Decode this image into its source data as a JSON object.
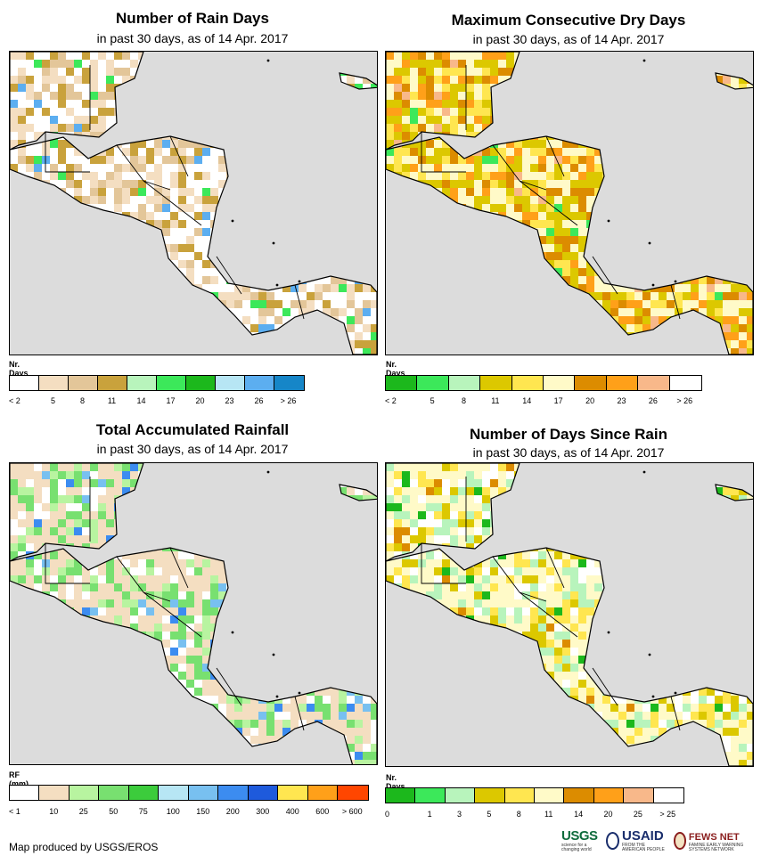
{
  "panels": [
    {
      "title": "Number of Rain Days",
      "subtitle": "in past 30 days, as of 14 Apr. 2017",
      "legend_title": "Nr. Days",
      "legend_colors": [
        "#ffffff",
        "#f4dec1",
        "#e3c699",
        "#c9a23c",
        "#b8f4bc",
        "#3ce85a",
        "#1cb81c",
        "#b7e6f4",
        "#5caef0",
        "#1686c8"
      ],
      "legend_ticks": [
        "< 2",
        "5",
        "8",
        "11",
        "14",
        "17",
        "20",
        "23",
        "26",
        "> 26"
      ],
      "map_fill": [
        "#ffffff",
        "#ffffff",
        "#ffffff",
        "#f4dec1",
        "#f4dec1",
        "#e3c699",
        "#c9a23c"
      ],
      "map_accent": [
        "#3ce85a",
        "#5caef0"
      ]
    },
    {
      "title": "Maximum Consecutive Dry Days",
      "subtitle": "in past 30 days, as of 14 Apr. 2017",
      "legend_title": "Nr. Days",
      "legend_colors": [
        "#1cb81c",
        "#3ce85a",
        "#b8f4bc",
        "#dcc800",
        "#ffe650",
        "#fffac8",
        "#dc8c00",
        "#ffa019",
        "#f8b88a",
        "#ffffff"
      ],
      "legend_ticks": [
        "< 2",
        "5",
        "8",
        "11",
        "14",
        "17",
        "20",
        "23",
        "26",
        "> 26"
      ],
      "map_fill": [
        "#dcc800",
        "#ffe650",
        "#fffac8",
        "#dc8c00",
        "#ffa019",
        "#dcc800",
        "#fffac8"
      ],
      "map_accent": [
        "#3ce85a",
        "#f8b88a"
      ]
    },
    {
      "title": "Total Accumulated Rainfall",
      "subtitle": "in past 30 days, as of 14 Apr. 2017",
      "legend_title": "RF (mm)",
      "legend_colors": [
        "#ffffff",
        "#f4dec1",
        "#b8f4a0",
        "#78e070",
        "#3ccc3c",
        "#b7e6f4",
        "#78c0f0",
        "#3c8cf0",
        "#1e5adc",
        "#ffe650",
        "#ffa019",
        "#ff4600"
      ],
      "legend_ticks": [
        "< 1",
        "10",
        "25",
        "50",
        "75",
        "100",
        "150",
        "200",
        "300",
        "400",
        "600",
        "> 600"
      ],
      "map_fill": [
        "#f4dec1",
        "#f4dec1",
        "#ffffff",
        "#b8f4a0",
        "#78e070",
        "#f4dec1",
        "#78e070"
      ],
      "map_accent": [
        "#78c0f0",
        "#3c8cf0"
      ]
    },
    {
      "title": "Number of Days Since Rain",
      "subtitle": "in past 30 days, as of 14 Apr. 2017",
      "legend_title": "Nr. Days",
      "legend_colors": [
        "#1cb81c",
        "#3ce85a",
        "#b8f4bc",
        "#dcc800",
        "#ffe650",
        "#fffac8",
        "#dc8c00",
        "#ffa019",
        "#f8b88a",
        "#ffffff"
      ],
      "legend_ticks": [
        "0",
        "1",
        "3",
        "5",
        "8",
        "11",
        "14",
        "20",
        "25",
        "> 25"
      ],
      "map_fill": [
        "#fffac8",
        "#ffffff",
        "#fffac8",
        "#ffe650",
        "#dcc800",
        "#b8f4bc",
        "#fffac8"
      ],
      "map_accent": [
        "#1cb81c",
        "#dc8c00"
      ]
    }
  ],
  "footer": {
    "credit": "Map produced by USGS/EROS",
    "logo_usgs": "USGS",
    "logo_usgs_sub": "science for a changing world",
    "logo_usaid": "USAID",
    "logo_usaid_sub": "FROM THE AMERICAN PEOPLE",
    "logo_fews": "FEWS NET",
    "logo_fews_sub": "FAMINE EARLY WARNING SYSTEMS NETWORK"
  }
}
